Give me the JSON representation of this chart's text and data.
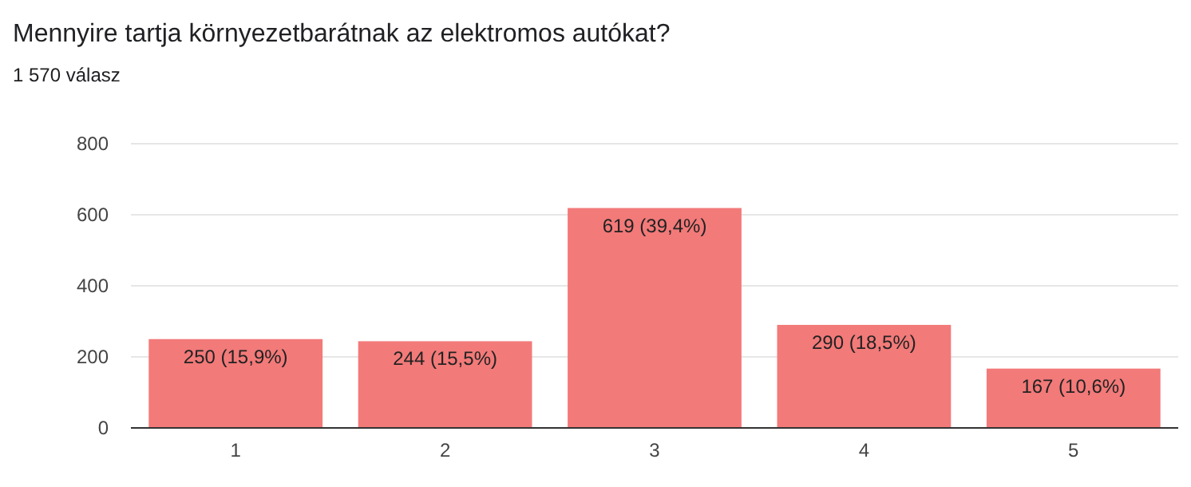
{
  "chart_data": {
    "type": "bar",
    "title": "Mennyire tartja környezetbarátnak az elektromos autókat?",
    "subtitle": "1 570 válasz",
    "categories": [
      "1",
      "2",
      "3",
      "4",
      "5"
    ],
    "values": [
      250,
      244,
      619,
      290,
      167
    ],
    "value_labels": [
      "250 (15,9%)",
      "244 (15,5%)",
      "619 (39,4%)",
      "290 (18,5%)",
      "167 (10,6%)"
    ],
    "color": "#f27a79",
    "ylim": [
      0,
      800
    ],
    "yticks": [
      0,
      200,
      400,
      600,
      800
    ],
    "grid": "y"
  }
}
